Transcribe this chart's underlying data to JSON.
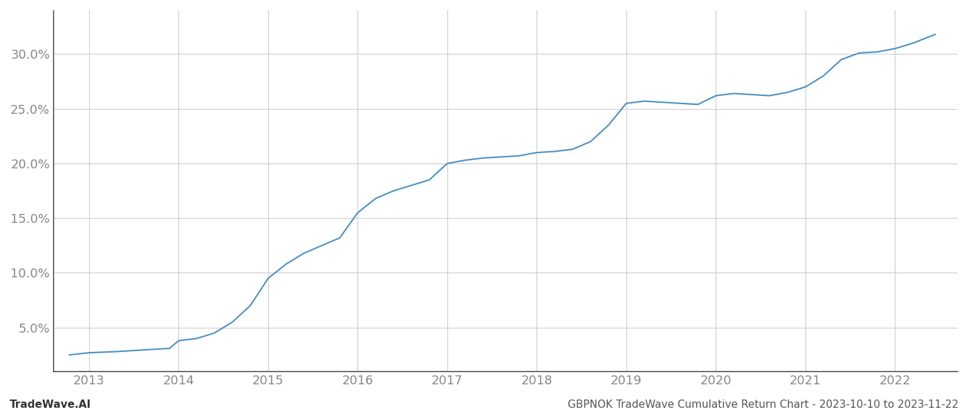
{
  "footer_left": "TradeWave.AI",
  "footer_right": "GBPNOK TradeWave Cumulative Return Chart - 2023-10-10 to 2023-11-22",
  "line_color": "#4a90c4",
  "background_color": "#ffffff",
  "grid_color": "#cccccc",
  "x_years": [
    2013,
    2014,
    2015,
    2016,
    2017,
    2018,
    2019,
    2020,
    2021,
    2022
  ],
  "x_data": [
    2012.78,
    2013.0,
    2013.15,
    2013.3,
    2013.5,
    2013.7,
    2013.9,
    2014.0,
    2014.2,
    2014.4,
    2014.6,
    2014.8,
    2015.0,
    2015.2,
    2015.4,
    2015.6,
    2015.8,
    2016.0,
    2016.2,
    2016.4,
    2016.6,
    2016.8,
    2017.0,
    2017.2,
    2017.4,
    2017.6,
    2017.8,
    2018.0,
    2018.2,
    2018.4,
    2018.6,
    2018.8,
    2019.0,
    2019.2,
    2019.4,
    2019.6,
    2019.8,
    2020.0,
    2020.2,
    2020.4,
    2020.6,
    2020.8,
    2021.0,
    2021.2,
    2021.4,
    2021.6,
    2021.8,
    2022.0,
    2022.2,
    2022.45
  ],
  "y_data": [
    2.5,
    2.7,
    2.75,
    2.8,
    2.9,
    3.0,
    3.1,
    3.8,
    4.0,
    4.5,
    5.5,
    7.0,
    9.5,
    10.8,
    11.8,
    12.5,
    13.2,
    15.5,
    16.8,
    17.5,
    18.0,
    18.5,
    20.0,
    20.3,
    20.5,
    20.6,
    20.7,
    21.0,
    21.1,
    21.3,
    22.0,
    23.5,
    25.5,
    25.7,
    25.6,
    25.5,
    25.4,
    26.2,
    26.4,
    26.3,
    26.2,
    26.5,
    27.0,
    28.0,
    29.5,
    30.1,
    30.2,
    30.5,
    31.0,
    31.8
  ],
  "ylim": [
    1.0,
    34.0
  ],
  "yticks": [
    5.0,
    10.0,
    15.0,
    20.0,
    25.0,
    30.0
  ],
  "xlim": [
    2012.6,
    2022.7
  ],
  "line_width": 1.5,
  "text_color": "#888888",
  "footer_fontsize": 11,
  "tick_fontsize": 13,
  "spine_color": "#333333"
}
